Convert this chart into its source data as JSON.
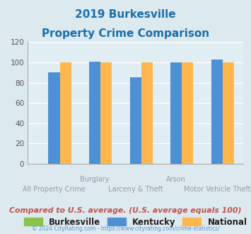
{
  "title_line1": "2019 Burkesville",
  "title_line2": "Property Crime Comparison",
  "title_color": "#1a6fad",
  "groups": [
    {
      "burkesville": 0,
      "kentucky": 90,
      "national": 100
    },
    {
      "burkesville": 0,
      "kentucky": 101,
      "national": 100
    },
    {
      "burkesville": 0,
      "kentucky": 85,
      "national": 100
    },
    {
      "burkesville": 0,
      "kentucky": 100,
      "national": 100
    },
    {
      "burkesville": 0,
      "kentucky": 103,
      "national": 100
    }
  ],
  "group_labels_top": [
    "",
    "Burglary",
    "",
    "Arson",
    ""
  ],
  "group_labels_bottom": [
    "All Property Crime",
    "",
    "Larceny & Theft",
    "",
    "Motor Vehicle Theft"
  ],
  "color_burkesville": "#8bc34a",
  "color_kentucky": "#4d90d5",
  "color_national": "#ffb74d",
  "ylim": [
    0,
    120
  ],
  "yticks": [
    0,
    20,
    40,
    60,
    80,
    100,
    120
  ],
  "bg_color": "#dce9ef",
  "plot_bg": "#e0edf3",
  "footer_text": "Compared to U.S. average. (U.S. average equals 100)",
  "footer_color": "#c0534f",
  "copyright_text": "© 2024 CityRating.com - https://www.cityrating.com/crime-statistics/",
  "copyright_color": "#5b9bd5"
}
